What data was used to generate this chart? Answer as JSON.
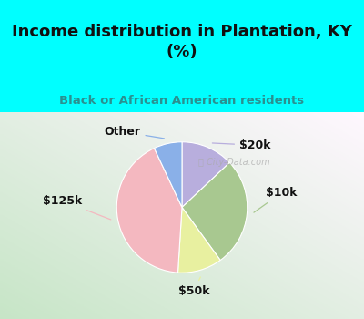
{
  "title": "Income distribution in Plantation, KY\n(%)",
  "subtitle": "Black or African American residents",
  "slices": [
    {
      "label": "$20k",
      "value": 13,
      "color": "#b8aedd"
    },
    {
      "label": "$10k",
      "value": 27,
      "color": "#a8c890"
    },
    {
      "label": "$50k",
      "value": 11,
      "color": "#e8f0a0"
    },
    {
      "label": "$125k",
      "value": 42,
      "color": "#f4b8c0"
    },
    {
      "label": "Other",
      "value": 7,
      "color": "#8ab0e8"
    }
  ],
  "bg_cyan": "#00ffff",
  "title_color": "#111111",
  "subtitle_color": "#2a9090",
  "watermark": "City-Data.com",
  "title_fontsize": 13,
  "subtitle_fontsize": 9.5,
  "startangle": 90,
  "label_fontsize": 9
}
